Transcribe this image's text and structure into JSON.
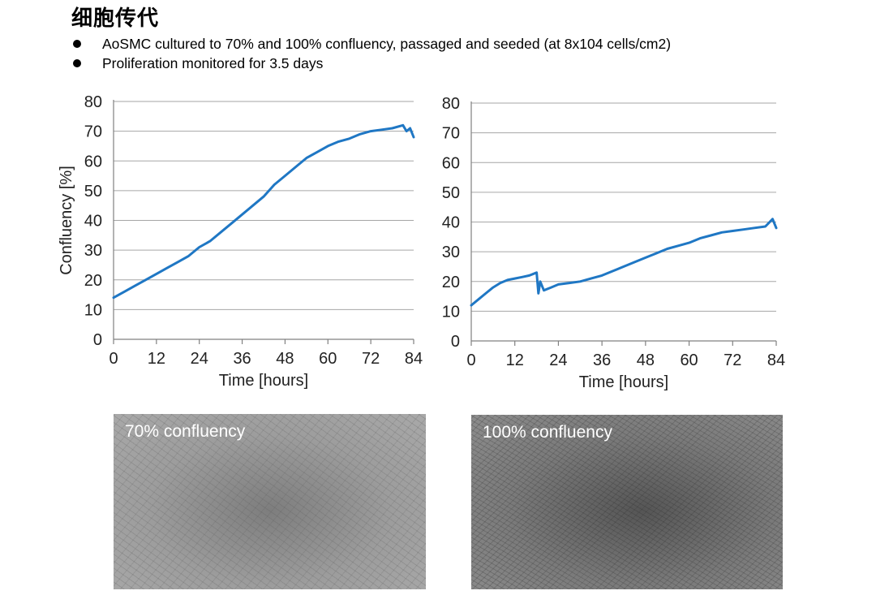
{
  "header": {
    "title": "细胞传代",
    "bullets": [
      "AoSMC cultured to 70% and 100% confluency, passaged and seeded (at 8x104 cells/cm2)",
      "Proliferation monitored for 3.5 days"
    ]
  },
  "colors": {
    "series": "#1f77c4",
    "grid": "#a6a6a6",
    "axis": "#808080"
  },
  "chart_data": [
    {
      "type": "line",
      "title": "",
      "xlabel": "Time [hours]",
      "ylabel": "Confluency [%]",
      "xlim": [
        0,
        84
      ],
      "ylim": [
        0,
        80
      ],
      "xticks": [
        0,
        12,
        24,
        36,
        48,
        60,
        72,
        84
      ],
      "yticks": [
        0,
        10,
        20,
        30,
        40,
        50,
        60,
        70,
        80
      ],
      "grid": "horizontal",
      "series": [
        {
          "x": [
            0,
            3,
            6,
            9,
            12,
            15,
            18,
            21,
            24,
            27,
            30,
            33,
            36,
            39,
            42,
            45,
            48,
            51,
            54,
            57,
            60,
            63,
            66,
            69,
            72,
            75,
            78,
            81,
            82,
            83,
            84
          ],
          "values": [
            14,
            16,
            18,
            20,
            22,
            24,
            26,
            28,
            31,
            33,
            36,
            39,
            42,
            45,
            48,
            52,
            55,
            58,
            61,
            63,
            65,
            66.5,
            67.5,
            69,
            70,
            70.5,
            71,
            72,
            70,
            71,
            68
          ]
        }
      ]
    },
    {
      "type": "line",
      "title": "",
      "xlabel": "Time [hours]",
      "ylabel": "",
      "xlim": [
        0,
        84
      ],
      "ylim": [
        0,
        80
      ],
      "xticks": [
        0,
        12,
        24,
        36,
        48,
        60,
        72,
        84
      ],
      "yticks": [
        0,
        10,
        20,
        30,
        40,
        50,
        60,
        70,
        80
      ],
      "grid": "horizontal",
      "series": [
        {
          "x": [
            0,
            2,
            4,
            6,
            8,
            10,
            12,
            14,
            16,
            18,
            18.5,
            19,
            20,
            22,
            24,
            27,
            30,
            33,
            36,
            39,
            42,
            45,
            48,
            51,
            54,
            57,
            60,
            63,
            66,
            69,
            72,
            75,
            78,
            81,
            83,
            84
          ],
          "values": [
            12,
            14,
            16,
            18,
            19.5,
            20.5,
            21,
            21.5,
            22,
            23,
            16,
            20,
            17,
            18,
            19,
            19.5,
            20,
            21,
            22,
            23.5,
            25,
            26.5,
            28,
            29.5,
            31,
            32,
            33,
            34.5,
            35.5,
            36.5,
            37,
            37.5,
            38,
            38.5,
            41,
            38
          ]
        }
      ]
    }
  ],
  "photos": [
    {
      "label": "70% confluency"
    },
    {
      "label": "100% confluency"
    }
  ]
}
